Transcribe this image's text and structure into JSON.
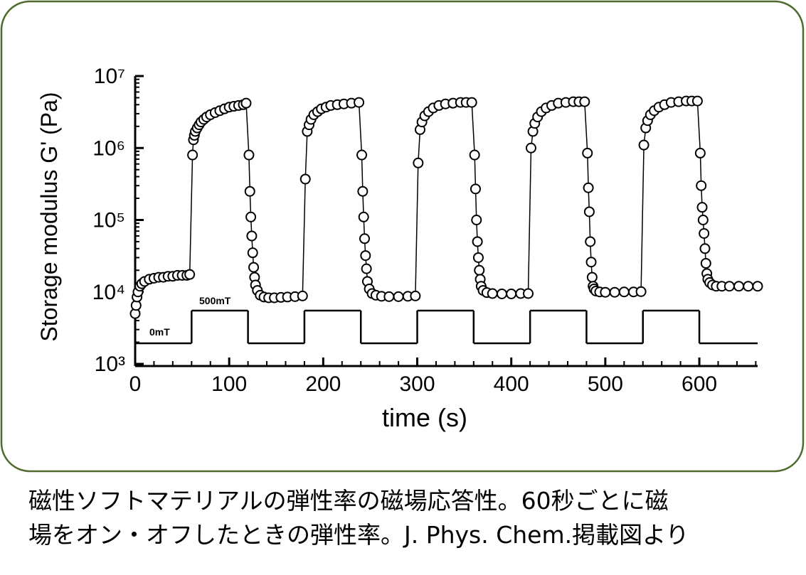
{
  "chart_data": {
    "type": "scatter-line",
    "xlabel": "time (s)",
    "ylabel": "Storage modulus G' (Pa)",
    "xlim": [
      0,
      662
    ],
    "xticks": [
      0,
      100,
      200,
      300,
      400,
      500,
      600
    ],
    "ylim": [
      1000,
      10000000
    ],
    "log_y": true,
    "yticks": [
      {
        "value": 1000,
        "label": "10³"
      },
      {
        "value": 10000,
        "label": "10⁴"
      },
      {
        "value": 100000,
        "label": "10⁵"
      },
      {
        "value": 1000000,
        "label": "10⁶"
      },
      {
        "value": 10000000,
        "label": "10⁷"
      }
    ],
    "color": "#000000",
    "x": [
      0,
      1,
      2,
      3,
      5,
      7,
      10,
      15,
      20,
      25,
      30,
      35,
      40,
      45,
      50,
      55,
      58,
      61,
      62,
      63,
      64,
      66,
      68,
      70,
      73,
      76,
      80,
      85,
      90,
      95,
      100,
      105,
      110,
      115,
      118,
      121,
      122,
      123,
      124,
      125,
      126,
      127,
      128,
      130,
      133,
      137,
      142,
      148,
      155,
      162,
      170,
      178,
      181,
      183,
      185,
      187,
      190,
      194,
      198,
      203,
      208,
      215,
      222,
      230,
      238,
      241,
      242,
      243,
      244,
      245,
      246,
      247,
      249,
      252,
      256,
      262,
      270,
      280,
      290,
      298,
      301,
      303,
      305,
      308,
      312,
      317,
      323,
      330,
      338,
      346,
      352,
      358,
      361,
      362,
      363,
      364,
      365,
      366,
      367,
      368,
      370,
      374,
      380,
      390,
      400,
      410,
      418,
      421,
      423,
      425,
      428,
      432,
      437,
      443,
      450,
      458,
      466,
      472,
      478,
      481,
      482,
      483,
      484,
      485,
      486,
      487,
      488,
      490,
      494,
      500,
      510,
      520,
      530,
      538,
      541,
      543,
      545,
      548,
      552,
      557,
      563,
      570,
      578,
      586,
      592,
      598,
      601,
      602,
      603,
      604,
      605,
      606,
      607,
      608,
      609,
      611,
      614,
      618,
      624,
      632,
      642,
      652,
      662
    ],
    "values": [
      5000,
      6500,
      8500,
      10000,
      12000,
      13000,
      14000,
      15000,
      15500,
      16000,
      16000,
      16500,
      16500,
      17000,
      17000,
      17000,
      17500,
      800000,
      1300000,
      1500000,
      1700000,
      1900000,
      2100000,
      2300000,
      2500000,
      2700000,
      2900000,
      3100000,
      3300000,
      3500000,
      3700000,
      3800000,
      3900000,
      4000000,
      4200000,
      800000,
      250000,
      110000,
      60000,
      35000,
      22000,
      16000,
      12500,
      10500,
      9000,
      8500,
      8300,
      8300,
      8400,
      8500,
      8600,
      8800,
      370000,
      1700000,
      2100000,
      2500000,
      2900000,
      3200000,
      3500000,
      3700000,
      3900000,
      4000000,
      4100000,
      4200000,
      4300000,
      800000,
      250000,
      110000,
      55000,
      32000,
      21000,
      14000,
      11000,
      9500,
      9000,
      8700,
      8600,
      8600,
      8700,
      8800,
      620000,
      1800000,
      2300000,
      2800000,
      3200000,
      3600000,
      3900000,
      4100000,
      4200000,
      4300000,
      4300000,
      4300000,
      800000,
      270000,
      100000,
      50000,
      30000,
      20000,
      15000,
      12000,
      10500,
      9800,
      9500,
      9400,
      9400,
      9500,
      9500,
      1000000,
      1700000,
      2200000,
      2700000,
      3200000,
      3600000,
      3900000,
      4200000,
      4300000,
      4400000,
      4400000,
      4400000,
      850000,
      280000,
      130000,
      50000,
      26000,
      16000,
      12000,
      11000,
      10300,
      10000,
      9900,
      9900,
      10000,
      10000,
      10100,
      1100000,
      1900000,
      2400000,
      2900000,
      3300000,
      3700000,
      4000000,
      4300000,
      4400000,
      4500000,
      4500000,
      4500000,
      850000,
      300000,
      150000,
      100000,
      65000,
      40000,
      25000,
      18000,
      15000,
      13500,
      12500,
      12000,
      12000,
      12000,
      12000,
      12000,
      12000
    ],
    "field": {
      "x": [
        0,
        60,
        120,
        180,
        240,
        300,
        360,
        420,
        480,
        540,
        600,
        662
      ],
      "values": [
        0,
        500,
        0,
        500,
        0,
        500,
        0,
        500,
        0,
        500,
        0,
        0
      ],
      "labels": [
        "0mT",
        "500mT"
      ]
    }
  },
  "caption": [
    "磁性ソフトマテリアルの弾性率の磁場応答性。60秒ごとに磁",
    "場をオン・オフしたときの弾性率。J. Phys. Chem.掲載図より"
  ]
}
